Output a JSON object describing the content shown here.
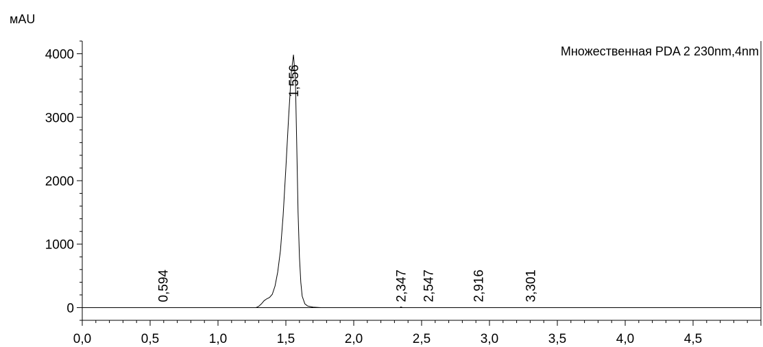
{
  "chart_data": {
    "type": "line",
    "ylabel": "мAU",
    "legend": "Множественная PDA 2 230nm,4nm",
    "legend_position": "top-right",
    "xlim": [
      0.0,
      5.0
    ],
    "ylim": [
      -200,
      4200
    ],
    "grid": false,
    "x_ticks": [
      {
        "value": 0.0,
        "label": "0,0"
      },
      {
        "value": 0.5,
        "label": "0,5"
      },
      {
        "value": 1.0,
        "label": "1,0"
      },
      {
        "value": 1.5,
        "label": "1,5"
      },
      {
        "value": 2.0,
        "label": "2,0"
      },
      {
        "value": 2.5,
        "label": "2,5"
      },
      {
        "value": 3.0,
        "label": "3,0"
      },
      {
        "value": 3.5,
        "label": "3,5"
      },
      {
        "value": 4.0,
        "label": "4,0"
      },
      {
        "value": 4.5,
        "label": "4,5"
      }
    ],
    "y_ticks": [
      {
        "value": 0,
        "label": "0"
      },
      {
        "value": 1000,
        "label": "1000"
      },
      {
        "value": 2000,
        "label": "2000"
      },
      {
        "value": 3000,
        "label": "3000"
      },
      {
        "value": 4000,
        "label": "4000"
      }
    ],
    "series": [
      {
        "name": "Множественная PDA 2 230nm,4nm",
        "color": "#000000",
        "x": [
          0.0,
          1.28,
          1.3,
          1.32,
          1.34,
          1.36,
          1.38,
          1.4,
          1.42,
          1.44,
          1.46,
          1.48,
          1.5,
          1.52,
          1.54,
          1.556,
          1.57,
          1.58,
          1.59,
          1.6,
          1.61,
          1.62,
          1.64,
          1.66,
          1.7,
          1.76,
          2.34,
          2.347,
          2.36,
          5.0
        ],
        "y": [
          0,
          0,
          20,
          60,
          110,
          140,
          160,
          210,
          340,
          560,
          900,
          1450,
          2200,
          3000,
          3700,
          3985,
          3600,
          2600,
          1500,
          800,
          400,
          180,
          60,
          25,
          8,
          0,
          0,
          10,
          0,
          0
        ]
      }
    ],
    "peaks": [
      {
        "rt": 0.594,
        "label": "0,594",
        "y": 0
      },
      {
        "rt": 1.556,
        "label": "1,556",
        "y": 3985
      },
      {
        "rt": 2.347,
        "label": "2,347",
        "y": 10
      },
      {
        "rt": 2.547,
        "label": "2,547",
        "y": 0
      },
      {
        "rt": 2.916,
        "label": "2,916",
        "y": 0
      },
      {
        "rt": 3.301,
        "label": "3,301",
        "y": 0
      }
    ]
  }
}
